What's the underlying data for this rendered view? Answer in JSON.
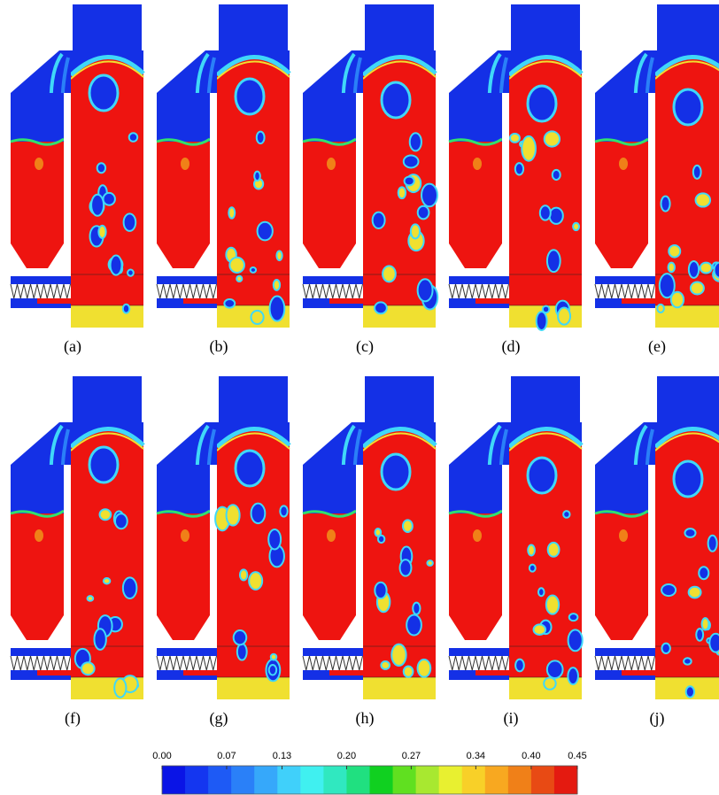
{
  "panels": [
    {
      "label": "(a)"
    },
    {
      "label": "(b)"
    },
    {
      "label": "(c)"
    },
    {
      "label": "(d)"
    },
    {
      "label": "(e)"
    },
    {
      "label": "(f)"
    },
    {
      "label": "(g)"
    },
    {
      "label": "(h)"
    },
    {
      "label": "(i)"
    },
    {
      "label": "(j)"
    }
  ],
  "colorbar": {
    "ticks": [
      {
        "value": 0,
        "label": "0.00"
      },
      {
        "value": 0.07,
        "label": "0.07"
      },
      {
        "value": 0.13,
        "label": "0.13"
      },
      {
        "value": 0.2,
        "label": "0.20"
      },
      {
        "value": 0.27,
        "label": "0.27"
      },
      {
        "value": 0.34,
        "label": "0.34"
      },
      {
        "value": 0.4,
        "label": "0.40"
      },
      {
        "value": 0.45,
        "label": "0.45"
      }
    ],
    "colors": [
      "#0a14e6",
      "#1436f0",
      "#1e5af5",
      "#2a80f8",
      "#36a8fa",
      "#40d0fa",
      "#40f0f0",
      "#30e8c0",
      "#20e080",
      "#10d020",
      "#60e020",
      "#a8e830",
      "#e8f030",
      "#f8d028",
      "#f8a820",
      "#f08018",
      "#e84a14",
      "#e41a10"
    ]
  }
}
